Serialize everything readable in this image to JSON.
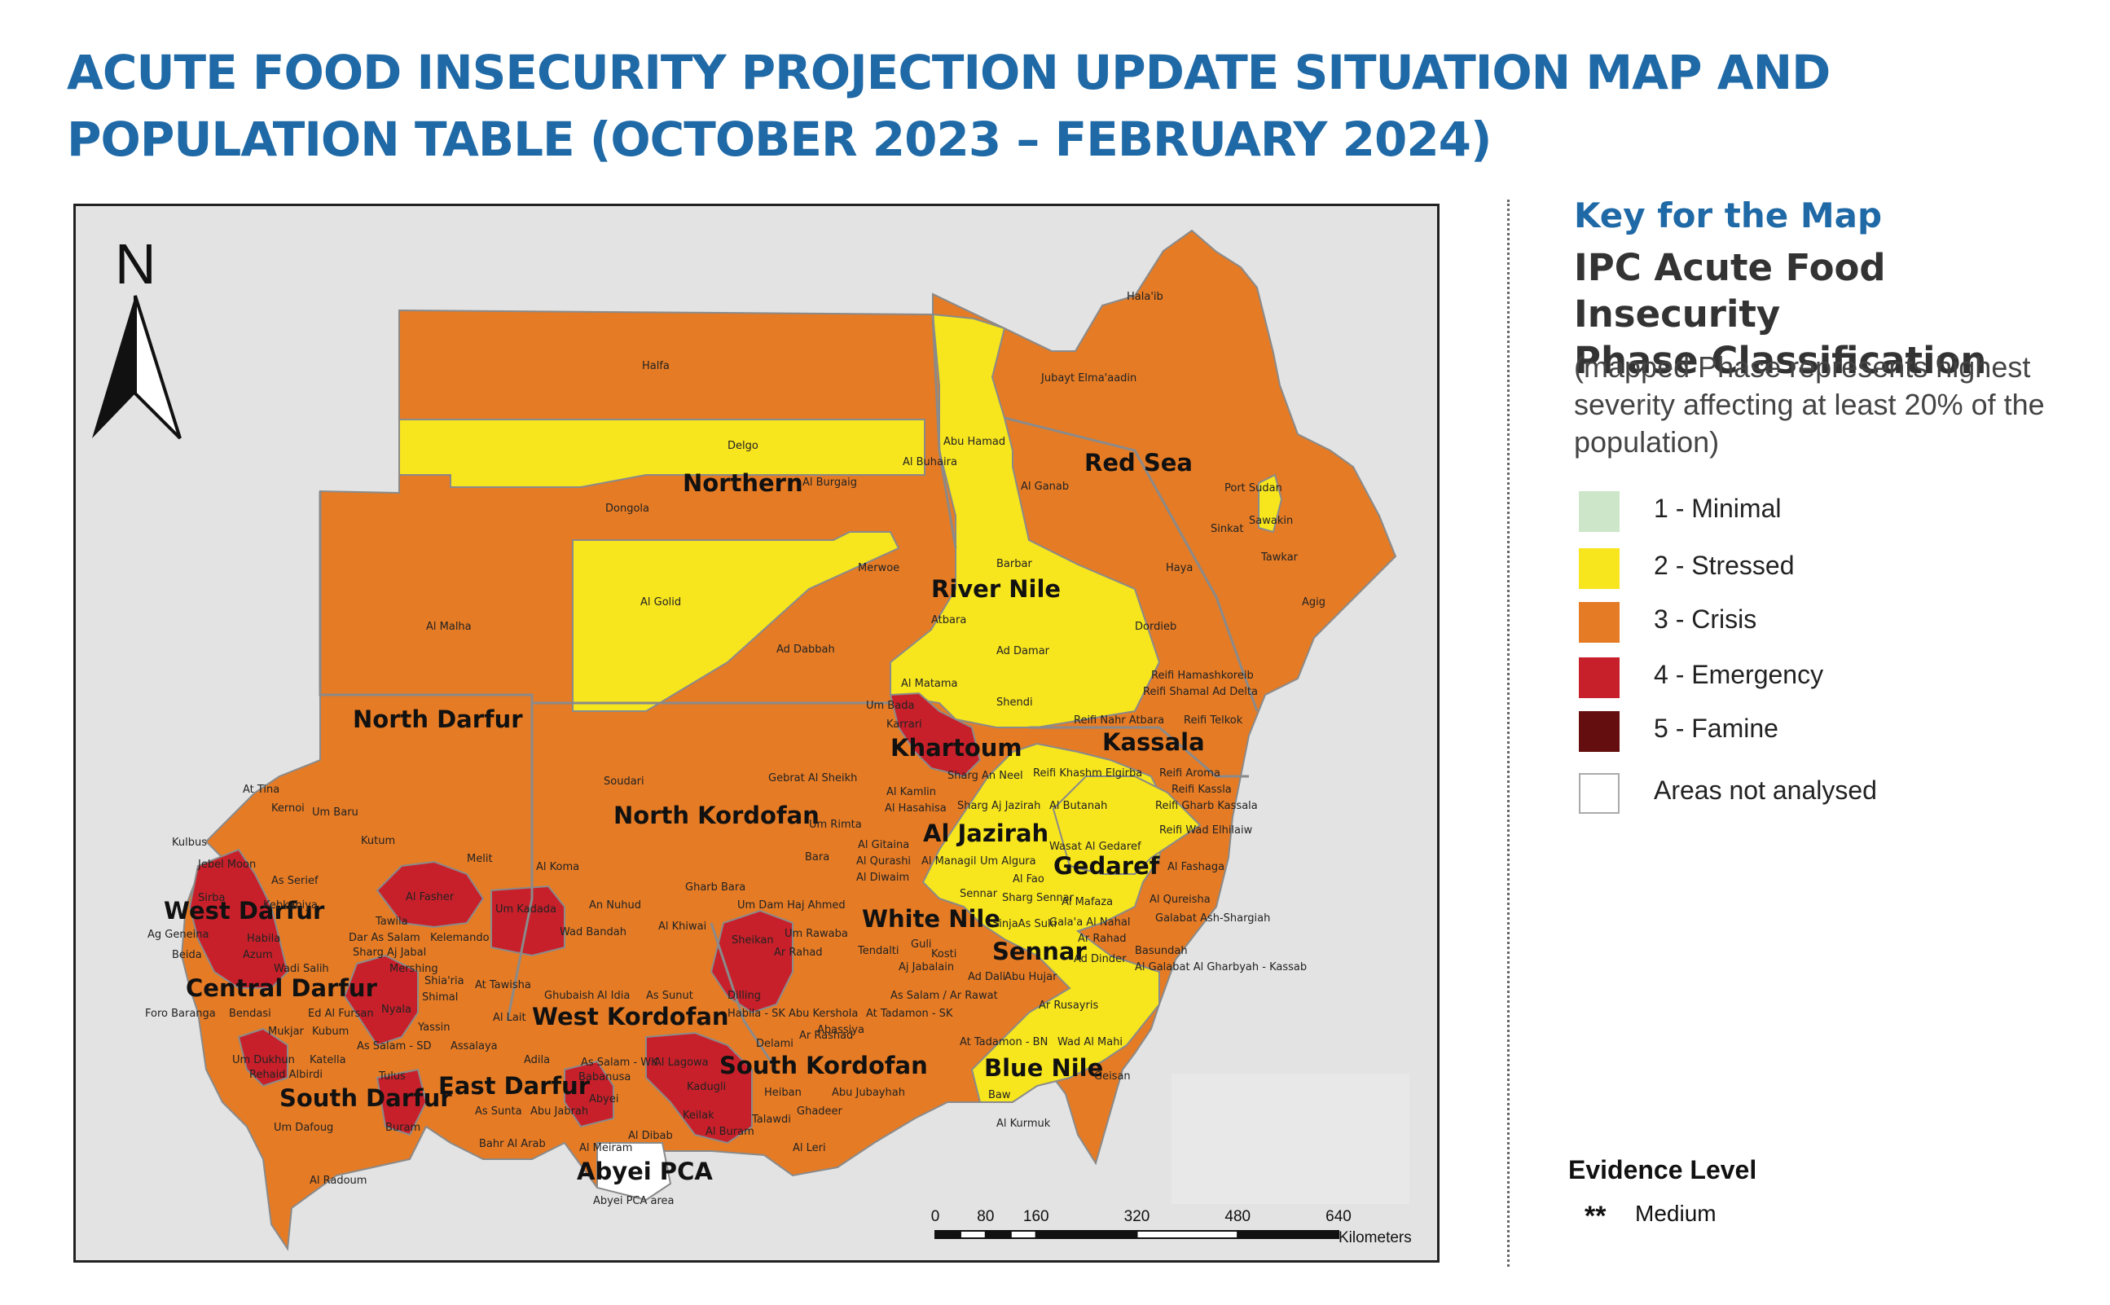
{
  "title": {
    "line1": "ACUTE FOOD INSECURITY PROJECTION UPDATE SITUATION MAP AND",
    "line2": "POPULATION TABLE (OCTOBER 2023 – FEBRUARY 2024)"
  },
  "map": {
    "north_label": "N",
    "state_labels": {
      "northern": "Northern",
      "red_sea": "Red Sea",
      "river_nile": "River Nile",
      "north_darfur": "North Darfur",
      "kassala": "Kassala",
      "khartoum": "Khartoum",
      "north_kordofan": "North Kordofan",
      "al_jazirah": "Al Jazirah",
      "gedaref": "Gedaref",
      "west_darfur": "West Darfur",
      "white_nile": "White Nile",
      "central_darfur": "Central Darfur",
      "sennar": "Sennar",
      "west_kordofan": "West Kordofan",
      "south_kordofan": "South Kordofan",
      "east_darfur": "East Darfur",
      "blue_nile": "Blue Nile",
      "south_darfur": "South Darfur",
      "abyei": "Abyei PCA"
    },
    "locality_labels": {
      "halaib": "Hala'ib",
      "jubayt": "Jubayt Elma'aadin",
      "halfa": "Halfa",
      "delgo": "Delgo",
      "abu_hamad": "Abu Hamad",
      "al_buhaira": "Al Buhaira",
      "al_burgaig": "Al Burgaig",
      "al_ganab": "Al Ganab",
      "port_sudan": "Port Sudan",
      "dongola": "Dongola",
      "sawakin": "Sawakin",
      "sinkat": "Sinkat",
      "tawkar": "Tawkar",
      "barbar": "Barbar",
      "merwoe": "Merwoe",
      "haya": "Haya",
      "agig": "Agig",
      "al_golid": "Al Golid",
      "atbara": "Atbara",
      "al_malha": "Al Malha",
      "dordieb": "Dordieb",
      "ad_dabbah": "Ad Dabbah",
      "ad_damar": "Ad Damar",
      "reifi_hamashkoreib": "Reifi Hamashkoreib",
      "al_matama": "Al Matama",
      "reifi_shamal_ad_delta": "Reifi Shamal Ad Delta",
      "shendi": "Shendi",
      "um_bada": "Um Bada",
      "reifi_nahr_atbara": "Reifi Nahr Atbara",
      "reifi_telkok": "Reifi Telkok",
      "karrari": "Karrari",
      "soudari": "Soudari",
      "gebrat_al_sheikh": "Gebrat Al Sheikh",
      "sharg_an_neel": "Sharg An Neel",
      "reifi_khashm": "Reifi Khashm Elgirba",
      "reifi_aroma": "Reifi Aroma",
      "at_tina": "At Tina",
      "al_kamlin": "Al Kamlin",
      "reifi_kassla": "Reifi Kassla",
      "kernoi": "Kernoi",
      "um_baru": "Um Baru",
      "al_hasahisa": "Al Hasahisa",
      "sharg_aj_jazirah": "Sharg Aj Jazirah",
      "al_butanah": "Al Butanah",
      "reifi_gharb_kassala": "Reifi Gharb Kassala",
      "um_rimta": "Um Rimta",
      "kutum": "Kutum",
      "reifi_wad_elhilaiw": "Reifi Wad Elhilaiw",
      "kulbus": "Kulbus",
      "al_gitaina": "Al Gitaina",
      "wasat_al_gedaref": "Wasat Al Gedaref",
      "jebel_moon": "Jebel Moon",
      "bara": "Bara",
      "melit": "Melit",
      "al_qurashi": "Al Qurashi",
      "al_managil": "Al Managil",
      "um_algura": "Um Algura",
      "al_fashaga": "Al Fashaga",
      "as_serief": "As Serief",
      "al_koma": "Al Koma",
      "al_diwaim": "Al Diwaim",
      "al_fao": "Al Fao",
      "sirba": "Sirba",
      "gharb_bara": "Gharb Bara",
      "al_fasher": "Al Fasher",
      "sennar_loc": "Sennar",
      "sharg_sennar": "Sharg Sennar",
      "al_qureisha": "Al Qureisha",
      "kebkabiya": "Kebkabiya",
      "um_dam_haj_ahmed": "Um Dam Haj Ahmed",
      "al_mafaza": "Al Mafaza",
      "um_kadada": "Um Kadada",
      "an_nuhud": "An Nuhud",
      "galabat_ash_shargiah": "Galabat Ash-Shargiah",
      "tawila": "Tawila",
      "sinjaas_suki": "SinjaAs Suki",
      "gala_a_al_nahal": "Gala'a Al Nahal",
      "ag_geneina": "Ag Geneina",
      "kelemando": "Kelemando",
      "al_khiwai": "Al Khiwai",
      "sheikan": "Sheikan",
      "um_rawaba": "Um Rawaba",
      "wad_bandah": "Wad Bandah",
      "dar_as_salam": "Dar As Salam",
      "ar_rahad": "Ar Rahad",
      "ar_rahad_gedaref": "Ar Rahad",
      "beida": "Beida",
      "habila": "Habila",
      "tendalti": "Tendalti",
      "guli": "Guli",
      "basundah": "Basundah",
      "azum": "Azum",
      "sharg_aj_jabal": "Sharg Aj Jabal",
      "kosti": "Kosti",
      "ad_dinder": "Ad Dinder",
      "al_galabat_al_gharbyah": "Al Galabat Al Gharbyah - Kassab",
      "wadi_salih": "Wadi Salih",
      "mukjar": "Mukjar",
      "shia_ria": "Shia'ria",
      "bara_sub": "Bara",
      "aj_jabalain": "Aj Jabalain",
      "ad_dali": "Ad Dali",
      "abu_hujar": "Abu Hujar",
      "at_tawisha": "At Tawisha",
      "ghubaish": "Ghubaish",
      "al_idia": "Al Idia",
      "as_sunut": "As Sunut",
      "dilling": "Dilling",
      "as_salam_ar_rawat": "As Salam / Ar Rawat",
      "mershing": "Mershing",
      "shimal_jabal": "Shimal",
      "ar_rusayris": "Ar Rusayris",
      "foro_baranga": "Foro Baranga",
      "bendasi": "Bendasi",
      "ed_al_fursan": "Ed Al Fursan",
      "nyala": "Nyala",
      "al_lait": "Al Lait",
      "habila_sk": "Habila - SK",
      "abu_kershola": "Abu Kershola",
      "at_tadamon_sk": "At Tadamon - SK",
      "kubum": "Kubum",
      "yassin": "Yassin",
      "abassiya": "Abassiya",
      "as_salam_sd": "As Salam - SD",
      "assalaya": "Assalaya",
      "delami": "Delami",
      "at_tadamon_bn": "At Tadamon - BN",
      "wad_al_mahi": "Wad Al Mahi",
      "rashad": "Ar Rashad",
      "um_dukhun": "Um Dukhun",
      "katella": "Katella",
      "adila": "Adila",
      "as_salam_wk": "As Salam - WK",
      "al_lagowa": "Al Lagowa",
      "kadugli_region": "Kadugli",
      "rehaid_albirdi": "Rehaid Albirdi",
      "tulus": "Tulus",
      "babanusa": "Babanusa",
      "heiban": "Heiban",
      "abu_jubayhah": "Abu Jubayhah",
      "geisan": "Geisan",
      "baw": "Baw",
      "keilak": "Keilak",
      "al_buram": "Al Buram",
      "talawdi": "Talawdi",
      "ghadeer": "Ghadeer",
      "as_sunta": "As Sunta",
      "abu_jabrah": "Abu Jabrah",
      "abyei_town": "Abyei",
      "um_dafoug": "Um Dafoug",
      "buram": "Buram",
      "al_kurmuk": "Al Kurmuk",
      "bahr_al_arab": "Bahr Al Arab",
      "al_dibab": "Al Dibab",
      "al_meiram": "Al Meiram",
      "al_leri": "Al Leri",
      "al_radoum": "Al Radoum",
      "abyei_pca_area": "Abyei PCA area"
    },
    "scale": {
      "ticks": [
        "0",
        "80",
        "160",
        "320",
        "480",
        "640"
      ],
      "tick_km": [
        0,
        80,
        160,
        320,
        480,
        640
      ],
      "unit": "Kilometers"
    }
  },
  "key": {
    "title": "Key for the Map",
    "subtitle_line1": "IPC Acute Food Insecurity",
    "subtitle_line2": "Phase Classification",
    "note": "(mapped Phase represents highest severity affecting at least 20% of the population)",
    "phases": [
      {
        "label": "1 - Minimal",
        "color": "#cde6c9"
      },
      {
        "label": "2 - Stressed",
        "color": "#f7e51e"
      },
      {
        "label": "3 - Crisis",
        "color": "#e57b25"
      },
      {
        "label": "4 - Emergency",
        "color": "#c8202a"
      },
      {
        "label": "5 - Famine",
        "color": "#640e10"
      },
      {
        "label": "Areas not analysed",
        "color": "#ffffff"
      }
    ]
  },
  "evidence": {
    "title": "Evidence Level",
    "stars": "**",
    "label": "Medium"
  },
  "colors": {
    "title_blue": "#1f69a6",
    "crisis": "#e57b25",
    "stressed": "#f7e51e",
    "emergency": "#c8202a",
    "map_background": "#e3e3e3",
    "boundary": "#8a8a8a"
  }
}
